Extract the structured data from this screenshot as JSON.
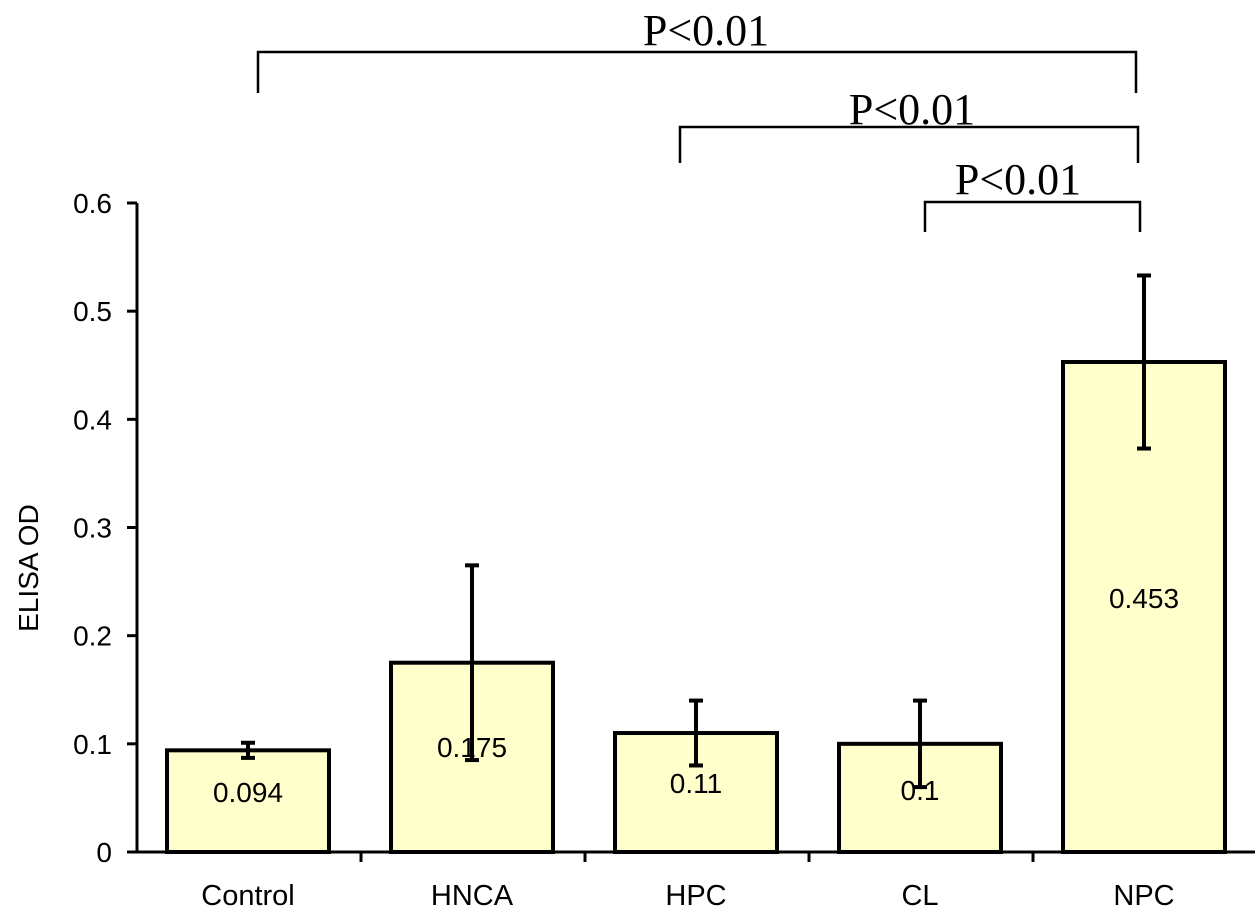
{
  "chart_data": {
    "type": "bar",
    "title": "",
    "xlabel": "",
    "ylabel": "ELISA OD",
    "ylim": [
      0,
      0.6
    ],
    "yticks": [
      "0",
      "0.1",
      "0.2",
      "0.3",
      "0.4",
      "0.5",
      "0.6"
    ],
    "categories": [
      "Control",
      "HNCA",
      "HPC",
      "CL",
      "NPC"
    ],
    "values": [
      0.094,
      0.175,
      0.11,
      0.1,
      0.453
    ],
    "value_labels": [
      "0.094",
      "0.175",
      "0.11",
      "0.1",
      "0.453"
    ],
    "error_bars": [
      {
        "low": 0.087,
        "high": 0.101
      },
      {
        "low": 0.085,
        "high": 0.265
      },
      {
        "low": 0.08,
        "high": 0.14
      },
      {
        "low": 0.06,
        "high": 0.14
      },
      {
        "low": 0.373,
        "high": 0.533
      }
    ],
    "significance": [
      {
        "from": "Control",
        "to": "NPC",
        "label": "P<0.01"
      },
      {
        "from": "HPC",
        "to": "NPC",
        "label": "P<0.01"
      },
      {
        "from": "CL",
        "to": "NPC",
        "label": "P<0.01"
      }
    ],
    "bar_color": "#ffffcc",
    "grid": false,
    "legend": "none"
  }
}
